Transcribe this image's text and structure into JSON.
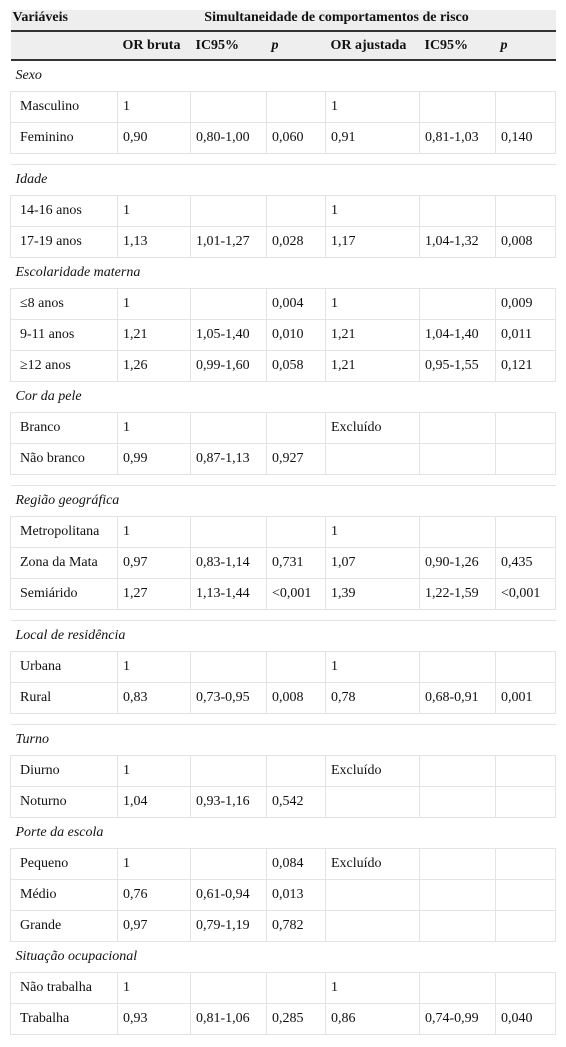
{
  "header": {
    "variable": "Variáveis",
    "group": "Simultaneidade de comportamentos de risco",
    "columns": [
      "OR bruta",
      "IC95%",
      "p",
      "OR ajustada",
      "IC95%",
      "p"
    ]
  },
  "sections": [
    {
      "title": "Sexo",
      "rows": [
        [
          "Masculino",
          "1",
          null,
          null,
          "1",
          null,
          null
        ],
        [
          "Feminino",
          "0,90",
          "0,80-1,00",
          "0,060",
          "0,91",
          "0,81-1,03",
          "0,140"
        ]
      ]
    },
    {
      "title": "Idade",
      "rows": [
        [
          "14-16 anos",
          "1",
          null,
          null,
          "1",
          null,
          null
        ],
        [
          "17-19 anos",
          "1,13",
          "1,01-1,27",
          "0,028",
          "1,17",
          "1,04-1,32",
          "0,008"
        ]
      ]
    },
    {
      "title": "Escolaridade materna",
      "rows": [
        [
          "≤8 anos",
          "1",
          null,
          "0,004",
          "1",
          null,
          "0,009"
        ],
        [
          "9-11 anos",
          "1,21",
          "1,05-1,40",
          "0,010",
          "1,21",
          "1,04-1,40",
          "0,011"
        ],
        [
          "≥12 anos",
          "1,26",
          "0,99-1,60",
          "0,058",
          "1,21",
          "0,95-1,55",
          "0,121"
        ]
      ]
    },
    {
      "title": "Cor da pele",
      "rows": [
        [
          "Branco",
          "1",
          null,
          null,
          "Excluído",
          null,
          null
        ],
        [
          "Não branco",
          "0,99",
          "0,87-1,13",
          "0,927",
          null,
          null,
          null
        ]
      ]
    },
    {
      "title": "Região geográfica",
      "rows": [
        [
          "Metropolitana",
          "1",
          null,
          null,
          "1",
          null,
          null
        ],
        [
          "Zona da Mata",
          "0,97",
          "0,83-1,14",
          "0,731",
          "1,07",
          "0,90-1,26",
          "0,435"
        ],
        [
          "Semiárido",
          "1,27",
          "1,13-1,44",
          "<0,001",
          "1,39",
          "1,22-1,59",
          "<0,001"
        ]
      ]
    },
    {
      "title": "Local de residência",
      "rows": [
        [
          "Urbana",
          "1",
          null,
          null,
          "1",
          null,
          null
        ],
        [
          "Rural",
          "0,83",
          "0,73-0,95",
          "0,008",
          "0,78",
          "0,68-0,91",
          "0,001"
        ]
      ]
    },
    {
      "title": "Turno",
      "rows": [
        [
          "Diurno",
          "1",
          null,
          null,
          "Excluído",
          null,
          null
        ],
        [
          "Noturno",
          "1,04",
          "0,93-1,16",
          "0,542",
          null,
          null,
          null
        ]
      ]
    },
    {
      "title": "Porte da escola",
      "rows": [
        [
          "Pequeno",
          "1",
          null,
          "0,084",
          "Excluído",
          null,
          null
        ],
        [
          "Médio",
          "0,76",
          "0,61-0,94",
          "0,013",
          null,
          null,
          null
        ],
        [
          "Grande",
          "0,97",
          "0,79-1,19",
          "0,782",
          null,
          null,
          null
        ]
      ]
    },
    {
      "title": "Situação ocupacional",
      "rows": [
        [
          "Não trabalha",
          "1",
          null,
          null,
          "1",
          null,
          null
        ],
        [
          "Trabalha",
          "0,93",
          "0,81-1,06",
          "0,285",
          "0,86",
          "0,74-0,99",
          "0,040"
        ]
      ]
    }
  ]
}
